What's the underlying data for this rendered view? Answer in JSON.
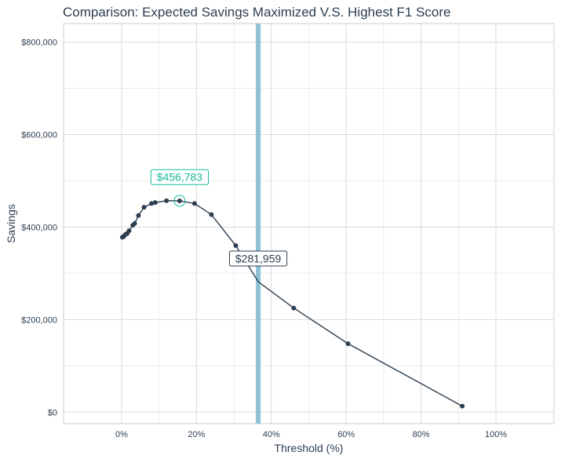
{
  "chart_data": {
    "type": "line",
    "title": "Comparison: Expected Savings Maximized V.S. Highest F1 Score",
    "xlabel": "Threshold (%)",
    "ylabel": "Savings",
    "xlim": [
      -0.155,
      1.155
    ],
    "ylim": [
      -25000,
      840000
    ],
    "x_ticks": [
      0,
      0.2,
      0.4,
      0.6,
      0.8,
      1.0
    ],
    "x_tick_labels": [
      "0%",
      "20%",
      "40%",
      "60%",
      "80%",
      "100%"
    ],
    "y_ticks": [
      0,
      200000,
      400000,
      600000,
      800000
    ],
    "y_tick_labels": [
      "$0",
      "$200,000",
      "$400,000",
      "$600,000",
      "$800,000"
    ],
    "grid": true,
    "series": [
      {
        "x": [
          0.002,
          0.005,
          0.008,
          0.012,
          0.015,
          0.02,
          0.03,
          0.035,
          0.045,
          0.06,
          0.08,
          0.09,
          0.12,
          0.155,
          0.195,
          0.24,
          0.305,
          0.365,
          0.46,
          0.605,
          0.91
        ],
        "y": [
          378000,
          379000,
          382000,
          385000,
          386000,
          392000,
          404000,
          408000,
          425000,
          443000,
          451000,
          453000,
          457000,
          456783,
          451000,
          427000,
          360000,
          281959,
          225000,
          148000,
          13000
        ],
        "color": "#2c3e50"
      }
    ],
    "points_marked": [
      0.002,
      0.005,
      0.008,
      0.012,
      0.015,
      0.02,
      0.03,
      0.035,
      0.045,
      0.06,
      0.08,
      0.09,
      0.12,
      0.155,
      0.195,
      0.24,
      0.305,
      0.46,
      0.605,
      0.91
    ],
    "vline": {
      "x": 0.365,
      "color": "#8fc1d6"
    },
    "annotations": [
      {
        "x": 0.155,
        "y": 456783,
        "text": "$456,783",
        "color": "#18bc9c",
        "highlight": "circle",
        "label_y": 508000
      },
      {
        "x": 0.365,
        "y": 281959,
        "text": "$281,959",
        "color": "#2c3e50",
        "label_y": 332000
      }
    ],
    "colors": {
      "line": "#2c3e50",
      "vline": "#8fc1d6",
      "highlight": "#18bc9c",
      "grid": "#d9d9d9",
      "text": "#2c3e50"
    }
  }
}
